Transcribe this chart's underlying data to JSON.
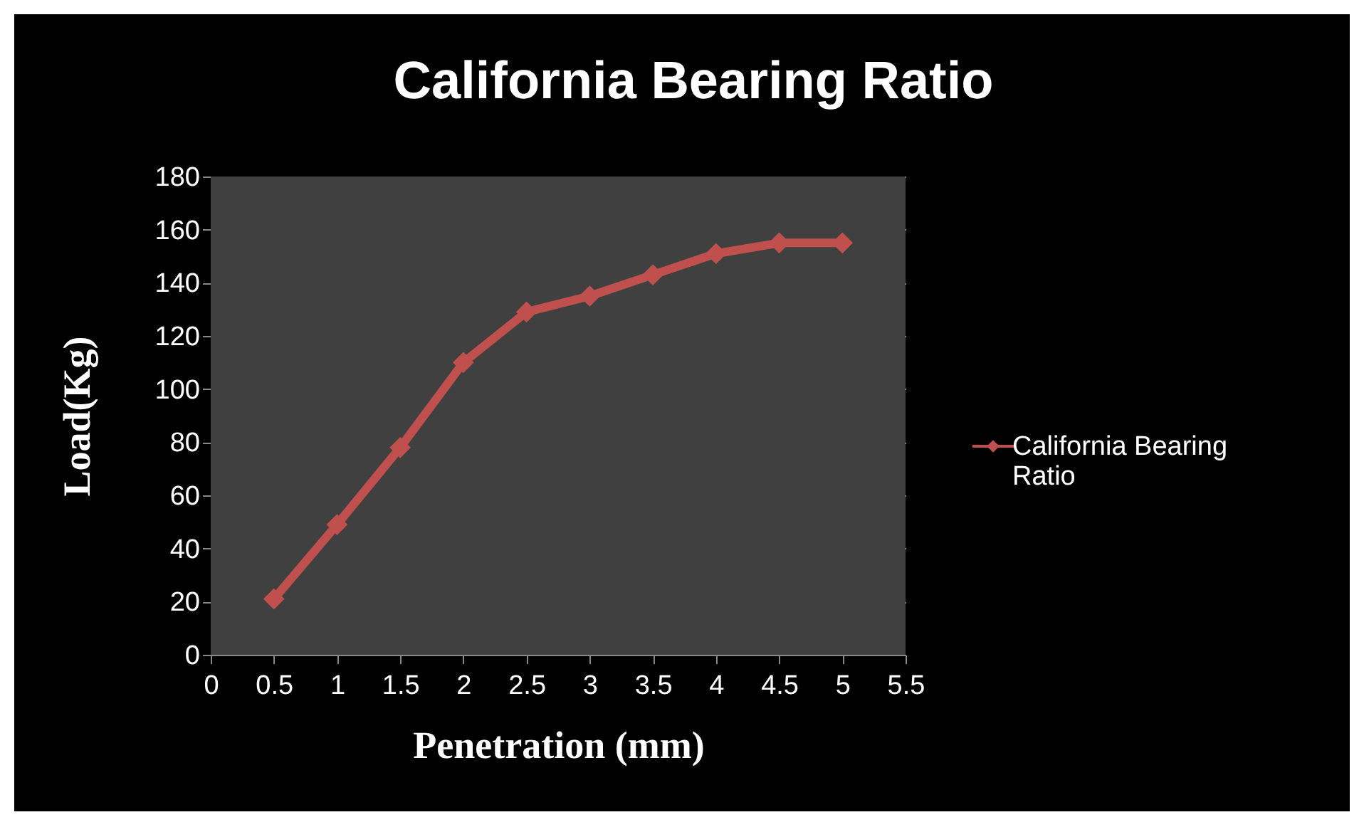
{
  "chart_data": {
    "type": "line",
    "title": "California Bearing Ratio",
    "xlabel": "Penetration (mm)",
    "ylabel": "Load(Kg)",
    "x": [
      0.5,
      1,
      1.5,
      2,
      2.5,
      3,
      3.5,
      4,
      4.5,
      5
    ],
    "series": [
      {
        "name": "California Bearing Ratio",
        "color": "#c0504d",
        "values": [
          21,
          49,
          78,
          110,
          129,
          135,
          143,
          151,
          155,
          155
        ]
      }
    ],
    "xlim": [
      0,
      5.5
    ],
    "xticks": [
      0,
      0.5,
      1,
      1.5,
      2,
      2.5,
      3,
      3.5,
      4,
      4.5,
      5,
      5.5
    ],
    "ylim": [
      0,
      180
    ],
    "yticks": [
      0,
      20,
      40,
      60,
      80,
      100,
      120,
      140,
      160,
      180
    ],
    "grid": "y",
    "legend": "right",
    "marker": "diamond",
    "line_style": "solid"
  }
}
